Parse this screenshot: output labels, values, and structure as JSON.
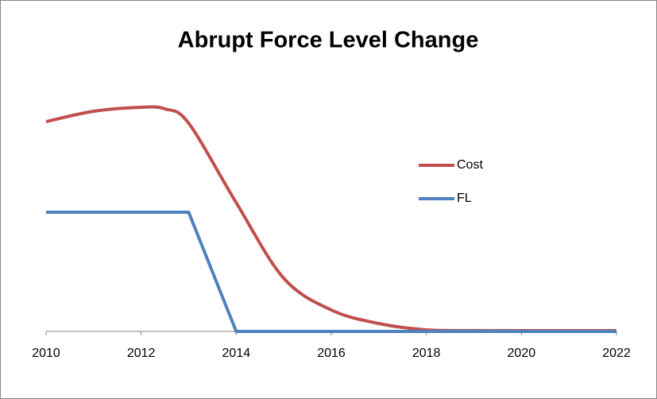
{
  "chart_data": {
    "type": "line",
    "title": "Abrupt Force Level Change",
    "x": [
      2010,
      2011,
      2012,
      2012.5,
      2013,
      2014,
      2015,
      2016,
      2017,
      2018,
      2019,
      2020,
      2021,
      2022
    ],
    "series": [
      {
        "name": "Cost",
        "color": "#c0504d",
        "values": [
          264,
          277,
          282,
          280,
          262,
          162,
          67,
          27,
          10,
          2,
          1,
          1,
          1,
          1
        ]
      },
      {
        "name": "FL",
        "color": "#4f81bd",
        "values": [
          150,
          150,
          150,
          150,
          150,
          0,
          0,
          0,
          0,
          0,
          0,
          0,
          0,
          0
        ]
      }
    ],
    "xlim": [
      2010,
      2022
    ],
    "xticks": [
      2010,
      2012,
      2014,
      2016,
      2018,
      2020,
      2022
    ],
    "ylim": [
      0,
      300
    ],
    "legend": "right"
  }
}
